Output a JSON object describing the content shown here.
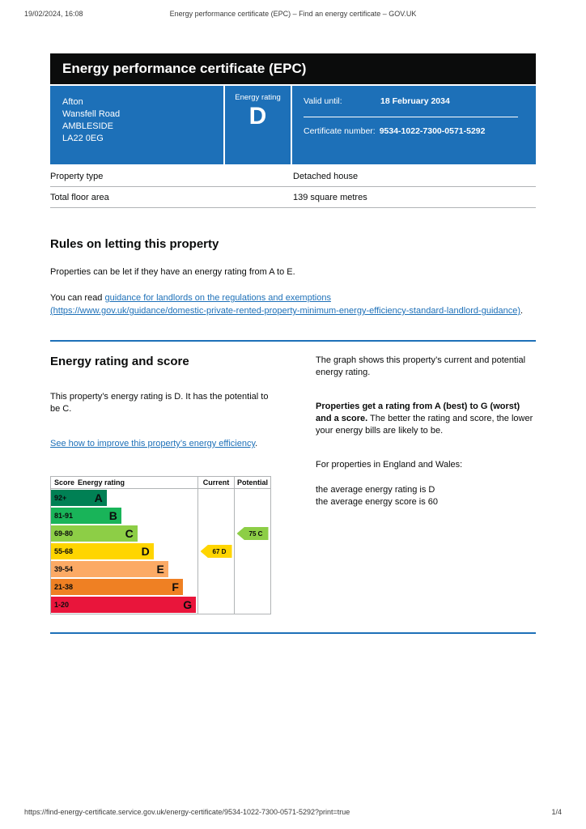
{
  "print_header": {
    "datetime": "19/02/2024, 16:08",
    "title": "Energy performance certificate (EPC) – Find an energy certificate – GOV.UK"
  },
  "banner": {
    "title": "Energy performance certificate (EPC)"
  },
  "summary": {
    "address_lines": [
      "Afton",
      "Wansfell Road",
      "AMBLESIDE",
      "LA22 0EG"
    ],
    "energy_rating_label": "Energy rating",
    "energy_rating": "D",
    "valid_until_label": "Valid until:",
    "valid_until": "18 February 2034",
    "certificate_number_label": "Certificate number:",
    "certificate_number": "9534-1022-7300-0571-5292"
  },
  "property_table": {
    "rows": [
      {
        "label": "Property type",
        "value": "Detached house"
      },
      {
        "label": "Total floor area",
        "value": "139 square metres"
      }
    ]
  },
  "rules_section": {
    "heading": "Rules on letting this property",
    "paragraph1": "Properties can be let if they have an energy rating from A to E.",
    "paragraph2_prefix": "You can read ",
    "link_text": "guidance for landlords on the regulations and exemptions",
    "link_url_display": "(https://www.gov.uk/guidance/domestic-private-rented-property-minimum-energy-efficiency-standard-landlord-guidance)",
    "paragraph2_suffix": "."
  },
  "energy_section": {
    "heading": "Energy rating and score",
    "left_paragraph": "This property’s energy rating is D. It has the potential to be C.",
    "improve_link": "See how to improve this property’s energy efficiency",
    "improve_link_suffix": ".",
    "right_paragraph1": "The graph shows this property’s current and potential energy rating.",
    "right_paragraph2_bold": "Properties get a rating from A (best) to G (worst) and a score.",
    "right_paragraph2_rest": " The better the rating and score, the lower your energy bills are likely to be.",
    "right_paragraph3": "For properties in England and Wales:",
    "average_rating_line": "the average energy rating is D",
    "average_score_line": "the average energy score is 60"
  },
  "chart_data": {
    "type": "epc_rating_bands",
    "headers": {
      "score": "Score",
      "rating": "Energy rating",
      "current": "Current",
      "potential": "Potential"
    },
    "bands": [
      {
        "score_range": "92+",
        "letter": "A",
        "color": "#008054",
        "bar_pct": 38
      },
      {
        "score_range": "81-91",
        "letter": "B",
        "color": "#19b459",
        "bar_pct": 48
      },
      {
        "score_range": "69-80",
        "letter": "C",
        "color": "#8dce46",
        "bar_pct": 59
      },
      {
        "score_range": "55-68",
        "letter": "D",
        "color": "#ffd500",
        "bar_pct": 70
      },
      {
        "score_range": "39-54",
        "letter": "E",
        "color": "#fcaa65",
        "bar_pct": 80
      },
      {
        "score_range": "21-38",
        "letter": "F",
        "color": "#ef8023",
        "bar_pct": 90
      },
      {
        "score_range": "1-20",
        "letter": "G",
        "color": "#e9153b",
        "bar_pct": 99
      }
    ],
    "current": {
      "score": 67,
      "letter": "D",
      "band_index": 3,
      "color": "#ffd500"
    },
    "potential": {
      "score": 75,
      "letter": "C",
      "band_index": 2,
      "color": "#8dce46"
    }
  },
  "colors": {
    "govuk_blue": "#1d70b8",
    "banner_black": "#0b0c0c",
    "link_blue": "#1d70b8",
    "border_grey": "#b1b4b6"
  },
  "print_footer": {
    "url": "https://find-energy-certificate.service.gov.uk/energy-certificate/9534-1022-7300-0571-5292?print=true",
    "page": "1/4"
  }
}
